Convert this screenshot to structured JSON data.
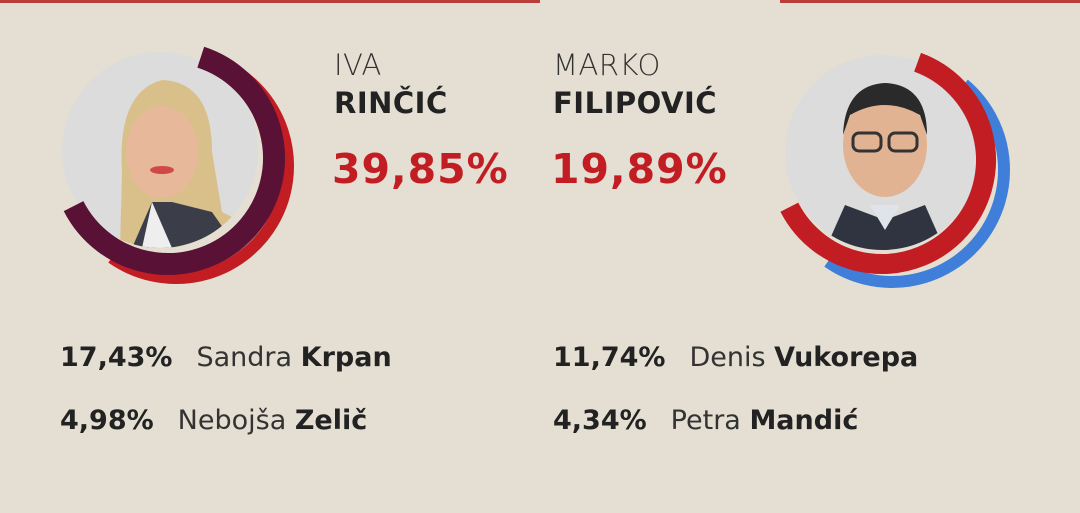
{
  "colors": {
    "background": "#e4dfd2",
    "accent_red": "#c21d22",
    "purple": "#5a1136",
    "blue": "#3f7fd9"
  },
  "main_candidates": [
    {
      "first_name": "IVA",
      "last_name": "RINČIĆ",
      "percent": "39,85%",
      "photo": "woman-portrait"
    },
    {
      "first_name": "MARKO",
      "last_name": "FILIPOVIĆ",
      "percent": "19,89%",
      "photo": "man-portrait"
    }
  ],
  "other_candidates": [
    {
      "percent": "17,43%",
      "first_name": "Sandra",
      "last_name": "Krpan"
    },
    {
      "percent": "4,98%",
      "first_name": "Nebojša",
      "last_name": "Zelič"
    },
    {
      "percent": "11,74%",
      "first_name": "Denis",
      "last_name": "Vukorepa"
    },
    {
      "percent": "4,34%",
      "first_name": "Petra",
      "last_name": "Mandić"
    }
  ]
}
